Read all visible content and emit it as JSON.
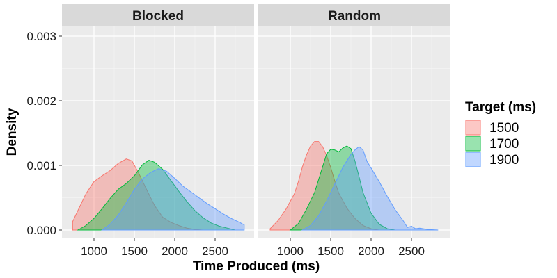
{
  "chart_data": {
    "type": "area",
    "subtype": "density",
    "facets": [
      "Blocked",
      "Random"
    ],
    "xlabel": "Time Produced (ms)",
    "ylabel": "Density",
    "xlim": [
      700,
      2900
    ],
    "ylim": [
      0,
      0.0031
    ],
    "x_ticks": [
      1000,
      1500,
      2000,
      2500
    ],
    "x_tick_labels": [
      "1000",
      "1500",
      "2000",
      "2500"
    ],
    "y_ticks": [
      0,
      0.001,
      0.002,
      0.003
    ],
    "y_tick_labels": [
      "0.000",
      "0.001",
      "0.002",
      "0.003"
    ],
    "grid": true,
    "legend": {
      "title": "Target (ms)",
      "position": "right",
      "entries": [
        "1500",
        "1700",
        "1900"
      ]
    },
    "colors": {
      "1500": {
        "fill": "#F8766D",
        "line": "#F8766D"
      },
      "1700": {
        "fill": "#00BA38",
        "line": "#00BA38"
      },
      "1900": {
        "fill": "#619CFF",
        "line": "#619CFF"
      },
      "panel_bg": "#EBEBEB",
      "strip_bg": "#D9D9D9",
      "grid_major": "#FFFFFF"
    },
    "fill_opacity": 0.4,
    "panels": [
      {
        "facet": "Blocked",
        "series": [
          {
            "name": "1500",
            "points": [
              [
                735,
                0.00013
              ],
              [
                800,
                0.0003
              ],
              [
                900,
                0.00056
              ],
              [
                1000,
                0.00075
              ],
              [
                1100,
                0.00084
              ],
              [
                1200,
                0.00092
              ],
              [
                1300,
                0.00103
              ],
              [
                1400,
                0.0011
              ],
              [
                1470,
                0.00107
              ],
              [
                1550,
                0.00089
              ],
              [
                1650,
                0.00063
              ],
              [
                1750,
                0.00038
              ],
              [
                1850,
                0.0002
              ],
              [
                1950,
                0.00012
              ],
              [
                2050,
                7e-05
              ],
              [
                2150,
                3e-05
              ],
              [
                2250,
                1e-05
              ],
              [
                2350,
                0.0
              ]
            ]
          },
          {
            "name": "1700",
            "points": [
              [
                800,
                0.0
              ],
              [
                900,
                7e-05
              ],
              [
                1000,
                0.00018
              ],
              [
                1100,
                0.00033
              ],
              [
                1200,
                0.00049
              ],
              [
                1300,
                0.00063
              ],
              [
                1400,
                0.00072
              ],
              [
                1500,
                0.00084
              ],
              [
                1600,
                0.00101
              ],
              [
                1680,
                0.00108
              ],
              [
                1750,
                0.00105
              ],
              [
                1850,
                0.00094
              ],
              [
                1950,
                0.00077
              ],
              [
                2050,
                0.0006
              ],
              [
                2150,
                0.00044
              ],
              [
                2250,
                0.0003
              ],
              [
                2350,
                0.00019
              ],
              [
                2450,
                0.00011
              ],
              [
                2550,
                6e-05
              ],
              [
                2650,
                3e-05
              ],
              [
                2750,
                0.0
              ]
            ]
          },
          {
            "name": "1900",
            "points": [
              [
                1100,
                0.0
              ],
              [
                1200,
                9e-05
              ],
              [
                1300,
                0.00023
              ],
              [
                1400,
                0.00042
              ],
              [
                1500,
                0.00063
              ],
              [
                1600,
                0.00079
              ],
              [
                1700,
                0.00089
              ],
              [
                1800,
                0.00095
              ],
              [
                1900,
                0.00091
              ],
              [
                2000,
                0.0008
              ],
              [
                2100,
                0.00068
              ],
              [
                2200,
                0.00059
              ],
              [
                2300,
                0.0005
              ],
              [
                2400,
                0.00041
              ],
              [
                2500,
                0.00033
              ],
              [
                2600,
                0.00025
              ],
              [
                2700,
                0.00018
              ],
              [
                2800,
                0.00012
              ],
              [
                2860,
                8e-05
              ]
            ]
          }
        ]
      },
      {
        "facet": "Random",
        "series": [
          {
            "name": "1500",
            "points": [
              [
                750,
                2e-05
              ],
              [
                850,
                0.00015
              ],
              [
                950,
                0.00033
              ],
              [
                1050,
                0.00056
              ],
              [
                1100,
                0.00075
              ],
              [
                1150,
                0.00098
              ],
              [
                1200,
                0.00116
              ],
              [
                1250,
                0.0013
              ],
              [
                1300,
                0.00137
              ],
              [
                1350,
                0.00137
              ],
              [
                1400,
                0.00129
              ],
              [
                1450,
                0.00115
              ],
              [
                1500,
                0.00097
              ],
              [
                1550,
                0.00076
              ],
              [
                1600,
                0.00057
              ],
              [
                1700,
                0.00034
              ],
              [
                1800,
                0.00018
              ],
              [
                1900,
                7e-05
              ],
              [
                2000,
                2e-05
              ],
              [
                2100,
                0.0
              ]
            ]
          },
          {
            "name": "1700",
            "points": [
              [
                1000,
                0.0
              ],
              [
                1100,
                0.0001
              ],
              [
                1200,
                0.00032
              ],
              [
                1300,
                0.00058
              ],
              [
                1400,
                0.00098
              ],
              [
                1450,
                0.00118
              ],
              [
                1500,
                0.00125
              ],
              [
                1550,
                0.00124
              ],
              [
                1600,
                0.00121
              ],
              [
                1650,
                0.00127
              ],
              [
                1700,
                0.0013
              ],
              [
                1750,
                0.00126
              ],
              [
                1800,
                0.00107
              ],
              [
                1850,
                0.00083
              ],
              [
                1900,
                0.00058
              ],
              [
                2000,
                0.00026
              ],
              [
                2100,
                9e-05
              ],
              [
                2200,
                2e-05
              ],
              [
                2300,
                0.0
              ]
            ]
          },
          {
            "name": "1900",
            "points": [
              [
                1150,
                0.0
              ],
              [
                1250,
                7e-05
              ],
              [
                1350,
                0.00022
              ],
              [
                1450,
                0.00045
              ],
              [
                1550,
                0.00071
              ],
              [
                1650,
                0.00097
              ],
              [
                1750,
                0.00117
              ],
              [
                1800,
                0.00124
              ],
              [
                1850,
                0.00129
              ],
              [
                1900,
                0.00124
              ],
              [
                1950,
                0.00106
              ],
              [
                2000,
                0.00096
              ],
              [
                2100,
                0.00075
              ],
              [
                2200,
                0.00052
              ],
              [
                2300,
                0.00031
              ],
              [
                2400,
                0.00014
              ],
              [
                2450,
                4e-05
              ],
              [
                2500,
                6e-05
              ],
              [
                2550,
                2e-05
              ],
              [
                2600,
                3e-05
              ],
              [
                2700,
                1e-05
              ],
              [
                2830,
                0.0
              ]
            ]
          }
        ]
      }
    ]
  }
}
